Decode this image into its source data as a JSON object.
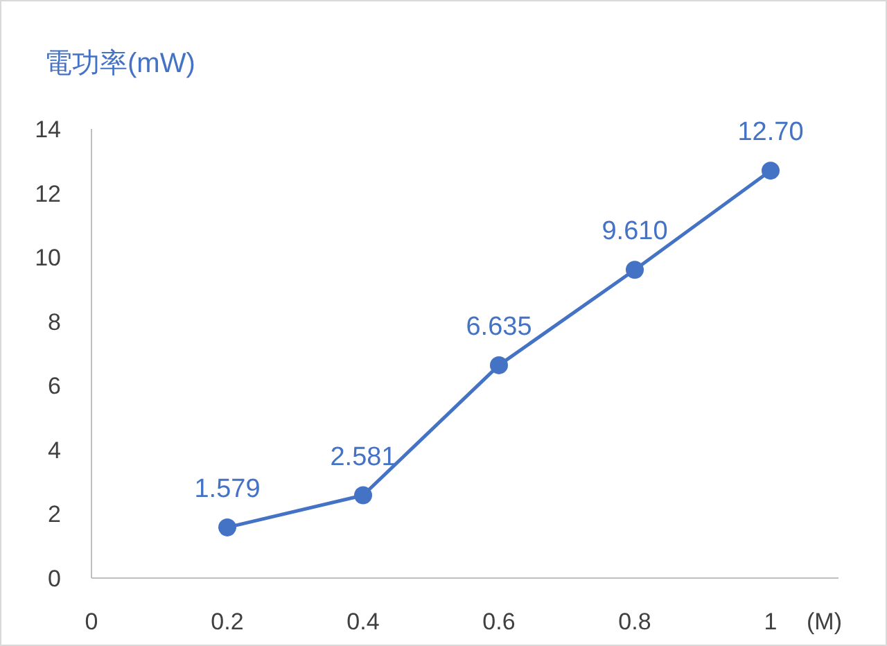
{
  "chart_data": {
    "type": "line",
    "ylabel": "電功率(mW)",
    "xlabel": "(M)",
    "x": [
      0.2,
      0.4,
      0.6,
      0.8,
      1.0
    ],
    "series": [
      {
        "color": "#4472c4",
        "values": [
          1.579,
          2.581,
          6.635,
          9.61,
          12.7
        ],
        "value_labels": [
          "1.579",
          "2.581",
          "6.635",
          "9.610",
          "12.70"
        ]
      }
    ],
    "xlim": [
      0,
      1.1
    ],
    "xticks": [
      0,
      0.2,
      0.4,
      0.6,
      0.8,
      1
    ],
    "ylim": [
      0,
      14
    ],
    "yticks": [
      0,
      2,
      4,
      6,
      8,
      10,
      12,
      14
    ],
    "marker": "circle",
    "line_style": "solid"
  }
}
